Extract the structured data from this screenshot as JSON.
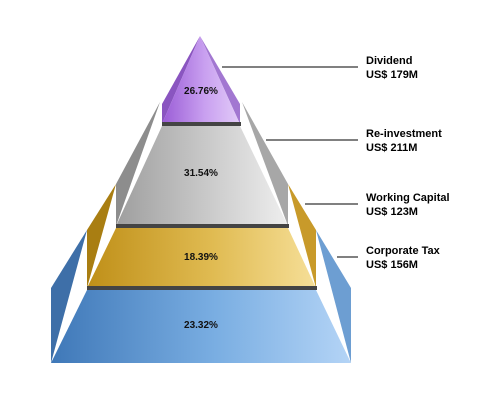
{
  "chart_data": {
    "type": "pyramid",
    "title": "",
    "series": [
      {
        "name": "Dividend",
        "value_label": "US$ 179M",
        "value": 179,
        "percent_label": "26.76%",
        "percent": 26.76,
        "color": "#b784e8"
      },
      {
        "name": "Re-investment",
        "value_label": "US$ 211M",
        "value": 211,
        "percent_label": "31.54%",
        "percent": 31.54,
        "color": "#bcbcbc"
      },
      {
        "name": "Working Capital",
        "value_label": "US$ 123M",
        "value": 123,
        "percent_label": "18.39%",
        "percent": 18.39,
        "color": "#dbb23e"
      },
      {
        "name": "Corporate Tax",
        "value_label": "US$ 156M",
        "value": 156,
        "percent_label": "23.32%",
        "percent": 23.32,
        "color": "#6b9fd6"
      }
    ]
  }
}
